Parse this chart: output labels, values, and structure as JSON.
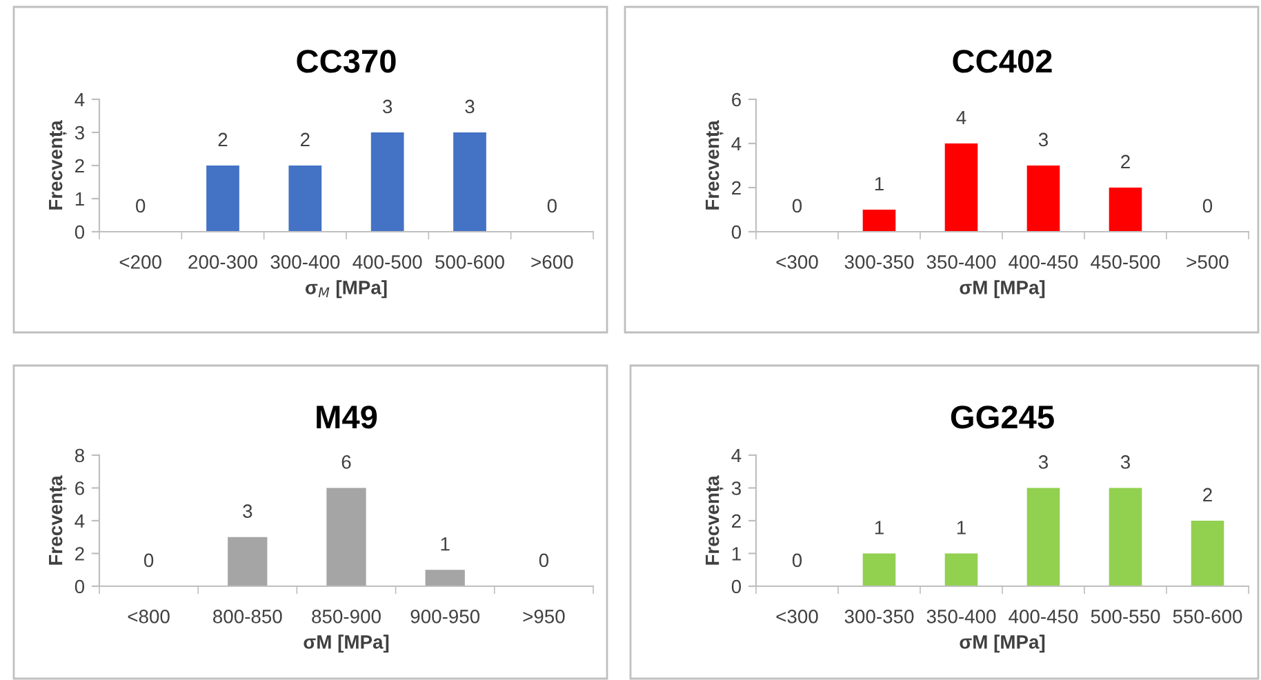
{
  "chart_data": [
    {
      "type": "bar",
      "title": "CC370",
      "xlabel": "σ$_{M}$ [MPa]",
      "ylabel": "Frecvența",
      "categories": [
        "<200",
        "200-300",
        "300-400",
        "400-500",
        "500-600",
        ">600"
      ],
      "values": [
        0,
        2,
        2,
        3,
        3,
        0
      ],
      "color": "#4472c4",
      "ylim": [
        0,
        4
      ],
      "yticks": [
        0,
        1,
        2,
        3,
        4
      ],
      "data_labels": true,
      "grid": false,
      "legend": false
    },
    {
      "type": "bar",
      "title": "CC402",
      "xlabel": "σM [MPa]",
      "ylabel": "Frecvența",
      "categories": [
        "<300",
        "300-350",
        "350-400",
        "400-450",
        "450-500",
        ">500"
      ],
      "values": [
        0,
        1,
        4,
        3,
        2,
        0
      ],
      "color": "#ff0000",
      "ylim": [
        0,
        6
      ],
      "yticks": [
        0,
        2,
        4,
        6
      ],
      "data_labels": true,
      "grid": false,
      "legend": false
    },
    {
      "type": "bar",
      "title": "M49",
      "xlabel": "σM [MPa]",
      "ylabel": "Frecvența",
      "categories": [
        "<800",
        "800-850",
        "850-900",
        "900-950",
        ">950"
      ],
      "values": [
        0,
        3,
        6,
        1,
        0
      ],
      "color": "#a5a5a5",
      "ylim": [
        0,
        8
      ],
      "yticks": [
        0,
        2,
        4,
        6,
        8
      ],
      "data_labels": true,
      "grid": false,
      "legend": false
    },
    {
      "type": "bar",
      "title": "GG245",
      "xlabel": "σM [MPa]",
      "ylabel": "Frecvența",
      "categories": [
        "<300",
        "300-350",
        "350-400",
        "400-450",
        "500-550",
        "550-600"
      ],
      "values": [
        0,
        1,
        1,
        3,
        3,
        2
      ],
      "color": "#92d050",
      "ylim": [
        0,
        4
      ],
      "yticks": [
        0,
        1,
        2,
        3,
        4
      ],
      "data_labels": true,
      "grid": false,
      "legend": false
    }
  ]
}
